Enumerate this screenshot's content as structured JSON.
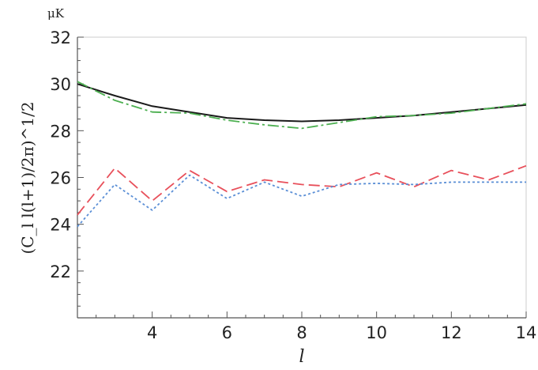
{
  "chart_data": {
    "type": "line",
    "title": "",
    "xlabel": "l",
    "ylabel": "(C_l l(l+1)/2π)^1/2",
    "yunit": "μK",
    "xlim": [
      2,
      14
    ],
    "ylim": [
      20,
      32
    ],
    "xticks": [
      4,
      6,
      8,
      10,
      12,
      14
    ],
    "yticks": [
      22,
      24,
      26,
      28,
      30,
      32
    ],
    "grid": false,
    "legend": "none",
    "x": [
      2,
      3,
      4,
      5,
      6,
      7,
      8,
      9,
      10,
      11,
      12,
      13,
      14
    ],
    "series": [
      {
        "color": "#1a1a1a",
        "style": "solid",
        "values": [
          30.0,
          29.5,
          29.05,
          28.8,
          28.55,
          28.45,
          28.4,
          28.45,
          28.55,
          28.65,
          28.8,
          28.95,
          29.1
        ]
      },
      {
        "color": "#4caf50",
        "style": "dashdot",
        "values": [
          30.1,
          29.3,
          28.8,
          28.75,
          28.45,
          28.25,
          28.1,
          28.35,
          28.6,
          28.65,
          28.75,
          28.95,
          29.15
        ]
      },
      {
        "color": "#e8505b",
        "style": "dashed",
        "values": [
          24.4,
          26.4,
          25.0,
          26.3,
          25.4,
          25.9,
          25.7,
          25.6,
          26.2,
          25.6,
          26.3,
          25.9,
          26.5
        ]
      },
      {
        "color": "#5b8fd6",
        "style": "dotted",
        "values": [
          23.9,
          25.7,
          24.6,
          26.1,
          25.1,
          25.8,
          25.2,
          25.7,
          25.75,
          25.7,
          25.8,
          25.8,
          25.8
        ]
      }
    ]
  }
}
